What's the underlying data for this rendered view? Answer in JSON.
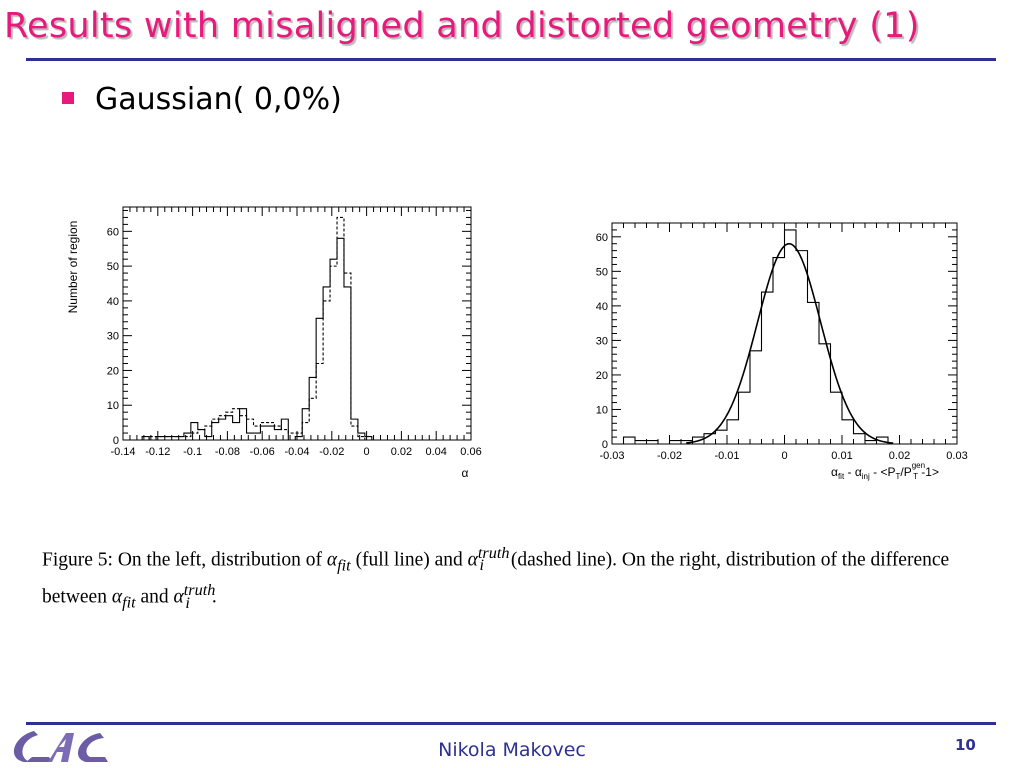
{
  "slide": {
    "title": "Results with misaligned and distorted geometry (1)",
    "bullet": "Gaussian( 0,0%)",
    "author": "Nikola Makovec",
    "page_number": "10",
    "caption": {
      "t1": "Figure 5:  On the left, distribution of ",
      "t2": " (full line) and ",
      "t3": " (dashed line).  On the right, distribution of the difference between ",
      "t4": " and ",
      "t5": ".",
      "alpha": "α",
      "fit": "fit",
      "i": "i",
      "truth": "truth"
    },
    "colors": {
      "title": "#e8197d",
      "rule": "#2e3192",
      "bullet": "#e8197d",
      "footer_text": "#2e3192"
    },
    "logo_icon": "lal-logo-icon"
  },
  "chart_data": [
    {
      "type": "histogram",
      "xlim": [
        -0.14,
        0.06
      ],
      "ylim": [
        0,
        67
      ],
      "xlabel": "α",
      "ylabel": "Number of region",
      "xticks": [
        -0.14,
        -0.12,
        -0.1,
        -0.08,
        -0.06,
        -0.04,
        -0.02,
        0,
        0.02,
        0.04,
        0.06
      ],
      "xtick_labels": [
        "-0.14",
        "-0.12",
        "-0.1",
        "-0.08",
        "-0.06",
        "-0.04",
        "-0.02",
        "0",
        "0.02",
        "0.04",
        "0.06"
      ],
      "yticks": [
        0,
        10,
        20,
        30,
        40,
        50,
        60
      ],
      "bin_edges": [
        -0.137,
        -0.133,
        -0.129,
        -0.125,
        -0.121,
        -0.117,
        -0.113,
        -0.109,
        -0.105,
        -0.101,
        -0.097,
        -0.093,
        -0.089,
        -0.085,
        -0.081,
        -0.077,
        -0.073,
        -0.069,
        -0.065,
        -0.061,
        -0.057,
        -0.053,
        -0.049,
        -0.045,
        -0.041,
        -0.037,
        -0.033,
        -0.029,
        -0.025,
        -0.021,
        -0.017,
        -0.013,
        -0.009,
        -0.005,
        -0.001,
        0.003,
        0.007
      ],
      "series": [
        {
          "style": "solid",
          "values": [
            0,
            0,
            1,
            0,
            1,
            1,
            1,
            1,
            2,
            5,
            3,
            1,
            5,
            6,
            7,
            5,
            9,
            2,
            2,
            4,
            4,
            3,
            6,
            0,
            1,
            9,
            18,
            35,
            44,
            52,
            58,
            44,
            6,
            2,
            1,
            0
          ]
        },
        {
          "style": "dashed",
          "values": [
            0,
            0,
            0,
            1,
            1,
            1,
            1,
            1,
            1,
            2,
            3,
            4,
            6,
            7,
            8,
            9,
            7,
            6,
            4,
            5,
            5,
            4,
            3,
            2,
            2,
            5,
            12,
            22,
            40,
            50,
            64,
            48,
            4,
            1,
            0,
            0
          ]
        }
      ]
    },
    {
      "type": "histogram",
      "xlim": [
        -0.03,
        0.03
      ],
      "ylim": [
        0,
        64
      ],
      "xlabel": "α",
      "xlabel_sub_fit": "fit",
      "xlabel_minus": " - α",
      "xlabel_sub_inj": "inj",
      "xlabel_rest1": " - <P",
      "xlabel_sub_T1": "T",
      "xlabel_rest2": "/P",
      "xlabel_sup_gen": "gen",
      "xlabel_sub_T2": "T",
      "xlabel_rest3": " -1>",
      "xticks": [
        -0.03,
        -0.02,
        -0.01,
        0,
        0.01,
        0.02,
        0.03
      ],
      "xtick_labels": [
        "-0.03",
        "-0.02",
        "-0.01",
        "0",
        "0.01",
        "0.02",
        "0.03"
      ],
      "yticks": [
        0,
        10,
        20,
        30,
        40,
        50,
        60
      ],
      "bin_edges": [
        -0.028,
        -0.026,
        -0.024,
        -0.022,
        -0.02,
        -0.018,
        -0.016,
        -0.014,
        -0.012,
        -0.01,
        -0.008,
        -0.006,
        -0.004,
        -0.002,
        0,
        0.002,
        0.004,
        0.006,
        0.008,
        0.01,
        0.012,
        0.014,
        0.016,
        0.018,
        0.02
      ],
      "series": [
        {
          "style": "solid",
          "values": [
            2,
            1,
            1,
            0,
            1,
            1,
            2,
            3,
            4,
            7,
            15,
            27,
            44,
            54,
            62,
            56,
            41,
            29,
            15,
            7,
            3,
            1,
            2,
            0
          ]
        }
      ],
      "fit": {
        "function": "gaussian",
        "amplitude": 58,
        "mean": 0.0008,
        "sigma": 0.0055
      }
    }
  ]
}
